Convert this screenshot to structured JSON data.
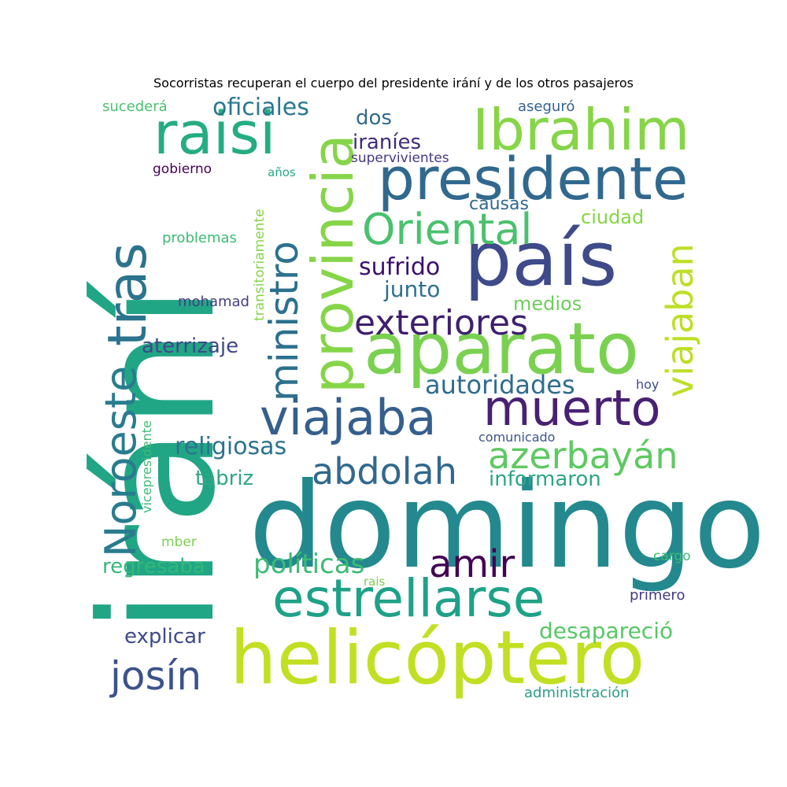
{
  "chart_data": {
    "type": "wordcloud",
    "title": "Socorristas recuperan el cuerpo del presidente irání y de los otros pasajeros",
    "words": [
      {
        "text": "irání",
        "weight": 100,
        "color": "#21a685",
        "orientation": "vertical"
      },
      {
        "text": "domingo",
        "weight": 90,
        "color": "#23898e",
        "orientation": "horizontal"
      },
      {
        "text": "helicóptero",
        "weight": 75,
        "color": "#c2df23",
        "orientation": "horizontal"
      },
      {
        "text": "aparato",
        "weight": 72,
        "color": "#7ad151",
        "orientation": "horizontal"
      },
      {
        "text": "país",
        "weight": 70,
        "color": "#3e4a89",
        "orientation": "horizontal"
      },
      {
        "text": "presidente",
        "weight": 62,
        "color": "#31688e",
        "orientation": "horizontal"
      },
      {
        "text": "provincia",
        "weight": 60,
        "color": "#86d549",
        "orientation": "vertical"
      },
      {
        "text": "Ibrahim",
        "weight": 60,
        "color": "#86d549",
        "orientation": "horizontal"
      },
      {
        "text": "raisi",
        "weight": 60,
        "color": "#25ac82",
        "orientation": "horizontal"
      },
      {
        "text": "estrellarse",
        "weight": 58,
        "color": "#1fa187",
        "orientation": "horizontal"
      },
      {
        "text": "tras",
        "weight": 56,
        "color": "#2c738e",
        "orientation": "vertical"
      },
      {
        "text": "muerto",
        "weight": 54,
        "color": "#482173",
        "orientation": "horizontal"
      },
      {
        "text": "viajaba",
        "weight": 53,
        "color": "#355f8d",
        "orientation": "horizontal"
      },
      {
        "text": "Noroeste",
        "weight": 50,
        "color": "#287c8e",
        "orientation": "vertical"
      },
      {
        "text": "ministro",
        "weight": 48,
        "color": "#2d708e",
        "orientation": "vertical"
      },
      {
        "text": "Oriental",
        "weight": 47,
        "color": "#4ac16d",
        "orientation": "horizontal"
      },
      {
        "text": "azerbayán",
        "weight": 46,
        "color": "#5ec962",
        "orientation": "horizontal"
      },
      {
        "text": "viajaban",
        "weight": 45,
        "color": "#bddf26",
        "orientation": "vertical"
      },
      {
        "text": "josín",
        "weight": 44,
        "color": "#3b528b",
        "orientation": "horizontal"
      },
      {
        "text": "amir",
        "weight": 42,
        "color": "#440154",
        "orientation": "horizontal"
      },
      {
        "text": "exteriores",
        "weight": 40,
        "color": "#3e1f6e",
        "orientation": "horizontal"
      },
      {
        "text": "abdolah",
        "weight": 40,
        "color": "#31688e",
        "orientation": "horizontal"
      },
      {
        "text": "políticas",
        "weight": 32,
        "color": "#3cbb75",
        "orientation": "horizontal"
      },
      {
        "text": "autoridades",
        "weight": 30,
        "color": "#2f6c8e",
        "orientation": "horizontal"
      },
      {
        "text": "oficiales",
        "weight": 28,
        "color": "#2a788e",
        "orientation": "horizontal"
      },
      {
        "text": "sufrido",
        "weight": 28,
        "color": "#3b0f70",
        "orientation": "horizontal"
      },
      {
        "text": "desapareció",
        "weight": 27,
        "color": "#58c765",
        "orientation": "horizontal"
      },
      {
        "text": "religiosas",
        "weight": 27,
        "color": "#2c728e",
        "orientation": "horizontal"
      },
      {
        "text": "informaron",
        "weight": 27,
        "color": "#2ca682",
        "orientation": "horizontal"
      },
      {
        "text": "explicar",
        "weight": 26,
        "color": "#3e4a89",
        "orientation": "horizontal"
      },
      {
        "text": "dos",
        "weight": 26,
        "color": "#336a8e",
        "orientation": "horizontal"
      },
      {
        "text": "iraníes",
        "weight": 26,
        "color": "#3e2b7b",
        "orientation": "horizontal"
      },
      {
        "text": "regresaba",
        "weight": 25,
        "color": "#35b779",
        "orientation": "horizontal"
      },
      {
        "text": "aterrizaje",
        "weight": 25,
        "color": "#3f4788",
        "orientation": "horizontal"
      },
      {
        "text": "junto",
        "weight": 25,
        "color": "#2c718e",
        "orientation": "horizontal"
      },
      {
        "text": "tabriz",
        "weight": 25,
        "color": "#31a583",
        "orientation": "horizontal"
      },
      {
        "text": "medios",
        "weight": 24,
        "color": "#6ccd5a",
        "orientation": "horizontal"
      },
      {
        "text": "ciudad",
        "weight": 24,
        "color": "#86d549",
        "orientation": "horizontal"
      },
      {
        "text": "causas",
        "weight": 22,
        "color": "#31688e",
        "orientation": "horizontal"
      },
      {
        "text": "mohamad",
        "weight": 18,
        "color": "#433d84",
        "orientation": "horizontal"
      },
      {
        "text": "problemas",
        "weight": 18,
        "color": "#3cbb75",
        "orientation": "horizontal"
      },
      {
        "text": "gobierno",
        "weight": 17,
        "color": "#440154",
        "orientation": "horizontal"
      },
      {
        "text": "sucederá",
        "weight": 17,
        "color": "#4ac16d",
        "orientation": "horizontal"
      },
      {
        "text": "aseguró",
        "weight": 17,
        "color": "#33638d",
        "orientation": "horizontal"
      },
      {
        "text": "primero",
        "weight": 17,
        "color": "#443a83",
        "orientation": "horizontal"
      },
      {
        "text": "administración",
        "weight": 17,
        "color": "#2a9d8a",
        "orientation": "horizontal"
      },
      {
        "text": "supervivientes",
        "weight": 16,
        "color": "#443983",
        "orientation": "horizontal"
      },
      {
        "text": "comunicado",
        "weight": 16,
        "color": "#3a548c",
        "orientation": "horizontal"
      },
      {
        "text": "hoy",
        "weight": 16,
        "color": "#3e4989",
        "orientation": "horizontal"
      },
      {
        "text": "cargo",
        "weight": 16,
        "color": "#3cbb75",
        "orientation": "horizontal"
      },
      {
        "text": "mber",
        "weight": 16,
        "color": "#7ad151",
        "orientation": "horizontal"
      },
      {
        "text": "años",
        "weight": 15,
        "color": "#25ab82",
        "orientation": "horizontal"
      },
      {
        "text": "transitoriamente",
        "weight": 14,
        "color": "#86d549",
        "orientation": "vertical"
      },
      {
        "text": "vicepresidente",
        "weight": 14,
        "color": "#3cbb75",
        "orientation": "vertical"
      },
      {
        "text": "rais",
        "weight": 14,
        "color": "#7ad151",
        "orientation": "horizontal"
      }
    ]
  }
}
